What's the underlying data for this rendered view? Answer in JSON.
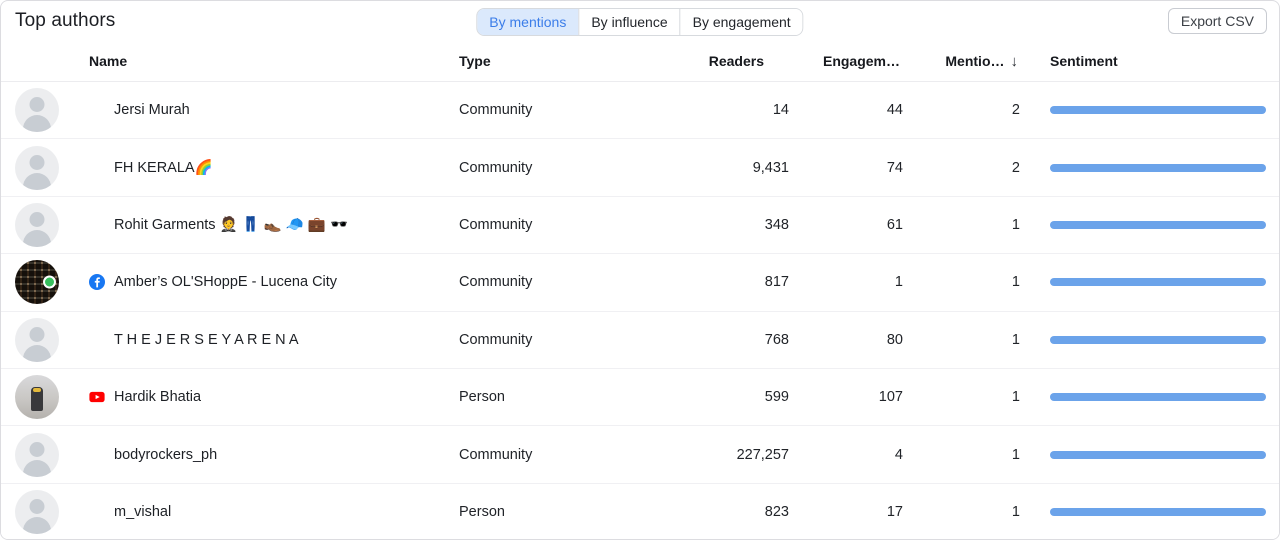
{
  "theme": {
    "accent_blue": "#3b7de9",
    "accent_blue_bg": "#dbe9fc",
    "sentiment_bar": "#6ba3ea",
    "instagram_gradient": [
      "#fdf497",
      "#fd5949",
      "#d6249f",
      "#285AEB"
    ],
    "facebook_blue": "#1877F2",
    "youtube_red": "#FF0000"
  },
  "header": {
    "title": "Top authors",
    "tabs": [
      {
        "label": "By mentions",
        "active": true
      },
      {
        "label": "By influence",
        "active": false
      },
      {
        "label": "By engagement",
        "active": false
      }
    ],
    "export_label": "Export CSV"
  },
  "table": {
    "columns": {
      "name": "Name",
      "type": "Type",
      "readers": "Readers",
      "engagement": "Engagem…",
      "mentions": "Mentio…",
      "sort_icon": "↓",
      "sentiment": "Sentiment"
    },
    "rows": [
      {
        "name": "Jersi Murah",
        "platform": "instagram",
        "avatar": "default",
        "type": "Community",
        "readers": "14",
        "engagement": "44",
        "mentions": "2"
      },
      {
        "name": "FH KERALA🌈",
        "platform": "instagram",
        "avatar": "default",
        "type": "Community",
        "readers": "9,431",
        "engagement": "74",
        "mentions": "2"
      },
      {
        "name": "Rohit Garments 🤵 👖 👞 🧢 💼 🕶️",
        "platform": "instagram",
        "avatar": "default",
        "type": "Community",
        "readers": "348",
        "engagement": "61",
        "mentions": "1"
      },
      {
        "name": "Amber’s OL'SHoppE - Lucena City",
        "platform": "facebook",
        "avatar": "photo-shirts",
        "type": "Community",
        "readers": "817",
        "engagement": "1",
        "mentions": "1"
      },
      {
        "name": "T H E J E R S E Y A R E N A",
        "platform": "instagram",
        "avatar": "default",
        "type": "Community",
        "readers": "768",
        "engagement": "80",
        "mentions": "1"
      },
      {
        "name": "Hardik Bhatia",
        "platform": "youtube",
        "avatar": "photo-person",
        "type": "Person",
        "readers": "599",
        "engagement": "107",
        "mentions": "1"
      },
      {
        "name": "bodyrockers_ph",
        "platform": "instagram",
        "avatar": "default",
        "type": "Community",
        "readers": "227,257",
        "engagement": "4",
        "mentions": "1"
      },
      {
        "name": "m_vishal",
        "platform": "instagram",
        "avatar": "default",
        "type": "Person",
        "readers": "823",
        "engagement": "17",
        "mentions": "1"
      }
    ]
  }
}
